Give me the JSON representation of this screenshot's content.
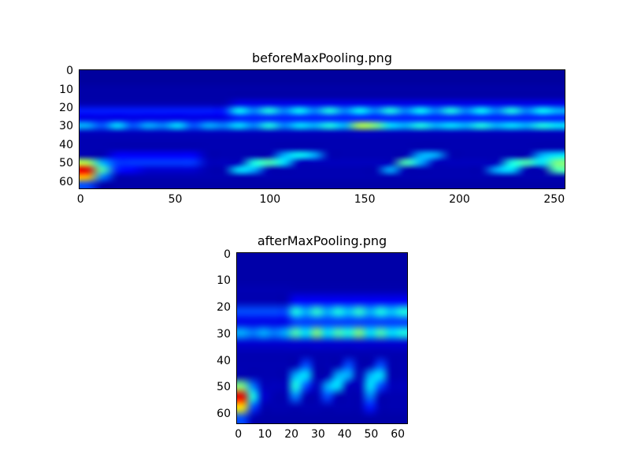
{
  "figure": {
    "background": "#ffffff",
    "text_color": "#000000"
  },
  "chart_data": [
    {
      "type": "heatmap",
      "title": "beforeMaxPooling.png",
      "colormap": "jet",
      "x_ticks": [
        0,
        50,
        100,
        150,
        200,
        250
      ],
      "y_ticks": [
        0,
        10,
        20,
        30,
        40,
        50,
        60
      ],
      "x_extent": 256,
      "y_extent": 64,
      "xlabel": "",
      "ylabel": "",
      "grid_note": "coarse 16x32 intensity grid (0-1), jet colormap approximation of the feature map: cyan wavy band near y=20-24, dashed band near y=30, diagonal streaks near y=44-56, hot yellow-red blob at bottom-left",
      "grid": [
        [
          0.03,
          0.03,
          0.03,
          0.03,
          0.03,
          0.03,
          0.03,
          0.03,
          0.03,
          0.03,
          0.03,
          0.03,
          0.03,
          0.03,
          0.03,
          0.03,
          0.03,
          0.03,
          0.03,
          0.03,
          0.03,
          0.03,
          0.03,
          0.03,
          0.03,
          0.03,
          0.03,
          0.03,
          0.03,
          0.03,
          0.03,
          0.03
        ],
        [
          0.03,
          0.03,
          0.03,
          0.03,
          0.03,
          0.03,
          0.03,
          0.03,
          0.03,
          0.03,
          0.03,
          0.03,
          0.03,
          0.03,
          0.03,
          0.03,
          0.03,
          0.03,
          0.03,
          0.03,
          0.03,
          0.03,
          0.03,
          0.03,
          0.03,
          0.03,
          0.03,
          0.03,
          0.03,
          0.03,
          0.03,
          0.03
        ],
        [
          0.04,
          0.04,
          0.04,
          0.04,
          0.04,
          0.04,
          0.04,
          0.04,
          0.04,
          0.04,
          0.04,
          0.04,
          0.04,
          0.04,
          0.04,
          0.04,
          0.04,
          0.04,
          0.04,
          0.04,
          0.04,
          0.04,
          0.04,
          0.04,
          0.04,
          0.04,
          0.04,
          0.04,
          0.04,
          0.04,
          0.04,
          0.04
        ],
        [
          0.04,
          0.04,
          0.04,
          0.04,
          0.04,
          0.04,
          0.04,
          0.04,
          0.04,
          0.04,
          0.04,
          0.04,
          0.04,
          0.04,
          0.04,
          0.04,
          0.04,
          0.04,
          0.04,
          0.04,
          0.04,
          0.04,
          0.04,
          0.04,
          0.04,
          0.04,
          0.04,
          0.04,
          0.04,
          0.04,
          0.04,
          0.04
        ],
        [
          0.05,
          0.05,
          0.05,
          0.05,
          0.05,
          0.05,
          0.05,
          0.05,
          0.05,
          0.05,
          0.1,
          0.1,
          0.1,
          0.1,
          0.1,
          0.1,
          0.1,
          0.1,
          0.1,
          0.1,
          0.1,
          0.1,
          0.1,
          0.1,
          0.1,
          0.1,
          0.1,
          0.1,
          0.1,
          0.1,
          0.1,
          0.1
        ],
        [
          0.15,
          0.15,
          0.15,
          0.15,
          0.15,
          0.15,
          0.15,
          0.15,
          0.15,
          0.15,
          0.38,
          0.25,
          0.4,
          0.25,
          0.38,
          0.25,
          0.4,
          0.25,
          0.38,
          0.25,
          0.4,
          0.25,
          0.38,
          0.25,
          0.4,
          0.25,
          0.38,
          0.25,
          0.4,
          0.25,
          0.38,
          0.3
        ],
        [
          0.1,
          0.1,
          0.1,
          0.1,
          0.1,
          0.1,
          0.1,
          0.1,
          0.1,
          0.1,
          0.15,
          0.15,
          0.15,
          0.15,
          0.15,
          0.15,
          0.15,
          0.15,
          0.15,
          0.15,
          0.15,
          0.15,
          0.15,
          0.15,
          0.15,
          0.15,
          0.15,
          0.15,
          0.15,
          0.15,
          0.15,
          0.15
        ],
        [
          0.3,
          0.2,
          0.35,
          0.2,
          0.3,
          0.25,
          0.35,
          0.2,
          0.3,
          0.25,
          0.35,
          0.25,
          0.4,
          0.25,
          0.35,
          0.3,
          0.4,
          0.3,
          0.55,
          0.5,
          0.35,
          0.3,
          0.4,
          0.3,
          0.35,
          0.3,
          0.4,
          0.3,
          0.35,
          0.3,
          0.4,
          0.35
        ],
        [
          0.06,
          0.06,
          0.06,
          0.06,
          0.06,
          0.06,
          0.06,
          0.06,
          0.06,
          0.06,
          0.06,
          0.06,
          0.06,
          0.06,
          0.06,
          0.06,
          0.06,
          0.06,
          0.06,
          0.06,
          0.06,
          0.06,
          0.06,
          0.06,
          0.06,
          0.06,
          0.06,
          0.06,
          0.06,
          0.06,
          0.06,
          0.06
        ],
        [
          0.05,
          0.05,
          0.05,
          0.05,
          0.05,
          0.05,
          0.05,
          0.05,
          0.05,
          0.05,
          0.05,
          0.05,
          0.05,
          0.05,
          0.05,
          0.05,
          0.05,
          0.05,
          0.05,
          0.05,
          0.05,
          0.05,
          0.05,
          0.05,
          0.05,
          0.05,
          0.05,
          0.05,
          0.05,
          0.05,
          0.05,
          0.05
        ],
        [
          0.05,
          0.05,
          0.05,
          0.05,
          0.05,
          0.05,
          0.05,
          0.05,
          0.05,
          0.05,
          0.05,
          0.05,
          0.05,
          0.05,
          0.05,
          0.05,
          0.05,
          0.05,
          0.05,
          0.05,
          0.05,
          0.05,
          0.05,
          0.05,
          0.05,
          0.05,
          0.05,
          0.05,
          0.05,
          0.05,
          0.05,
          0.05
        ],
        [
          0.05,
          0.05,
          0.12,
          0.12,
          0.12,
          0.12,
          0.12,
          0.12,
          0.05,
          0.05,
          0.05,
          0.05,
          0.05,
          0.3,
          0.38,
          0.3,
          0.05,
          0.05,
          0.05,
          0.05,
          0.05,
          0.05,
          0.3,
          0.3,
          0.05,
          0.05,
          0.05,
          0.05,
          0.05,
          0.05,
          0.3,
          0.35
        ],
        [
          0.55,
          0.3,
          0.18,
          0.18,
          0.18,
          0.18,
          0.18,
          0.18,
          0.06,
          0.06,
          0.06,
          0.4,
          0.45,
          0.35,
          0.06,
          0.06,
          0.06,
          0.06,
          0.06,
          0.06,
          0.06,
          0.45,
          0.3,
          0.06,
          0.06,
          0.06,
          0.06,
          0.06,
          0.4,
          0.45,
          0.35,
          0.5
        ],
        [
          0.9,
          0.45,
          0.15,
          0.12,
          0.08,
          0.08,
          0.08,
          0.08,
          0.05,
          0.05,
          0.35,
          0.3,
          0.05,
          0.05,
          0.05,
          0.05,
          0.05,
          0.05,
          0.05,
          0.05,
          0.3,
          0.05,
          0.05,
          0.05,
          0.05,
          0.05,
          0.05,
          0.3,
          0.35,
          0.05,
          0.05,
          0.45
        ],
        [
          0.7,
          0.25,
          0.05,
          0.05,
          0.05,
          0.05,
          0.05,
          0.05,
          0.05,
          0.05,
          0.05,
          0.05,
          0.05,
          0.05,
          0.05,
          0.05,
          0.05,
          0.05,
          0.05,
          0.05,
          0.05,
          0.05,
          0.05,
          0.05,
          0.05,
          0.05,
          0.05,
          0.05,
          0.05,
          0.05,
          0.05,
          0.05
        ],
        [
          0.2,
          0.04,
          0.04,
          0.04,
          0.04,
          0.04,
          0.04,
          0.04,
          0.04,
          0.04,
          0.04,
          0.04,
          0.04,
          0.04,
          0.04,
          0.04,
          0.04,
          0.04,
          0.04,
          0.04,
          0.04,
          0.04,
          0.04,
          0.04,
          0.04,
          0.04,
          0.04,
          0.04,
          0.04,
          0.04,
          0.04,
          0.04
        ]
      ]
    },
    {
      "type": "heatmap",
      "title": "afterMaxPooling.png",
      "colormap": "jet",
      "x_ticks": [
        0,
        10,
        20,
        30,
        40,
        50,
        60
      ],
      "y_ticks": [
        0,
        10,
        20,
        30,
        40,
        50,
        60
      ],
      "x_extent": 64,
      "y_extent": 64,
      "xlabel": "",
      "ylabel": "",
      "grid_note": "coarse 16x16 intensity grid (0-1), pooled version of the same feature map: wavy cyan band near y=20-24, dashed band near y=30, short diagonal streaks near y=40-56, hot yellow-red blob at bottom-left",
      "grid": [
        [
          0.04,
          0.04,
          0.04,
          0.04,
          0.04,
          0.04,
          0.04,
          0.04,
          0.04,
          0.04,
          0.04,
          0.04,
          0.04,
          0.04,
          0.04,
          0.04
        ],
        [
          0.04,
          0.04,
          0.04,
          0.04,
          0.04,
          0.04,
          0.04,
          0.04,
          0.04,
          0.04,
          0.04,
          0.04,
          0.04,
          0.04,
          0.04,
          0.04
        ],
        [
          0.04,
          0.04,
          0.04,
          0.04,
          0.04,
          0.04,
          0.04,
          0.04,
          0.04,
          0.04,
          0.04,
          0.04,
          0.04,
          0.04,
          0.04,
          0.04
        ],
        [
          0.05,
          0.05,
          0.05,
          0.05,
          0.05,
          0.05,
          0.05,
          0.05,
          0.05,
          0.05,
          0.05,
          0.05,
          0.05,
          0.05,
          0.05,
          0.05
        ],
        [
          0.05,
          0.05,
          0.05,
          0.05,
          0.05,
          0.12,
          0.12,
          0.12,
          0.12,
          0.12,
          0.12,
          0.12,
          0.12,
          0.12,
          0.12,
          0.12
        ],
        [
          0.2,
          0.2,
          0.2,
          0.2,
          0.2,
          0.4,
          0.3,
          0.42,
          0.3,
          0.4,
          0.32,
          0.42,
          0.3,
          0.4,
          0.32,
          0.4
        ],
        [
          0.1,
          0.1,
          0.1,
          0.1,
          0.1,
          0.18,
          0.18,
          0.18,
          0.18,
          0.18,
          0.18,
          0.18,
          0.18,
          0.18,
          0.18,
          0.18
        ],
        [
          0.3,
          0.25,
          0.3,
          0.25,
          0.3,
          0.45,
          0.35,
          0.5,
          0.35,
          0.45,
          0.4,
          0.5,
          0.35,
          0.45,
          0.35,
          0.4
        ],
        [
          0.08,
          0.08,
          0.08,
          0.08,
          0.08,
          0.08,
          0.08,
          0.08,
          0.08,
          0.08,
          0.08,
          0.08,
          0.08,
          0.08,
          0.08,
          0.08
        ],
        [
          0.05,
          0.05,
          0.05,
          0.05,
          0.05,
          0.05,
          0.05,
          0.05,
          0.05,
          0.05,
          0.05,
          0.05,
          0.05,
          0.05,
          0.05,
          0.05
        ],
        [
          0.05,
          0.05,
          0.05,
          0.05,
          0.05,
          0.05,
          0.2,
          0.05,
          0.05,
          0.05,
          0.2,
          0.05,
          0.05,
          0.2,
          0.05,
          0.05
        ],
        [
          0.05,
          0.05,
          0.05,
          0.05,
          0.05,
          0.3,
          0.35,
          0.05,
          0.05,
          0.3,
          0.3,
          0.05,
          0.3,
          0.35,
          0.05,
          0.05
        ],
        [
          0.5,
          0.25,
          0.06,
          0.06,
          0.06,
          0.4,
          0.2,
          0.06,
          0.3,
          0.35,
          0.06,
          0.06,
          0.35,
          0.2,
          0.06,
          0.06
        ],
        [
          0.9,
          0.4,
          0.08,
          0.05,
          0.05,
          0.25,
          0.05,
          0.05,
          0.2,
          0.05,
          0.05,
          0.05,
          0.25,
          0.05,
          0.05,
          0.05
        ],
        [
          0.65,
          0.2,
          0.05,
          0.05,
          0.05,
          0.05,
          0.05,
          0.05,
          0.05,
          0.05,
          0.05,
          0.05,
          0.15,
          0.05,
          0.05,
          0.05
        ],
        [
          0.2,
          0.05,
          0.04,
          0.04,
          0.04,
          0.04,
          0.04,
          0.04,
          0.04,
          0.04,
          0.04,
          0.04,
          0.04,
          0.04,
          0.04,
          0.04
        ]
      ]
    }
  ]
}
